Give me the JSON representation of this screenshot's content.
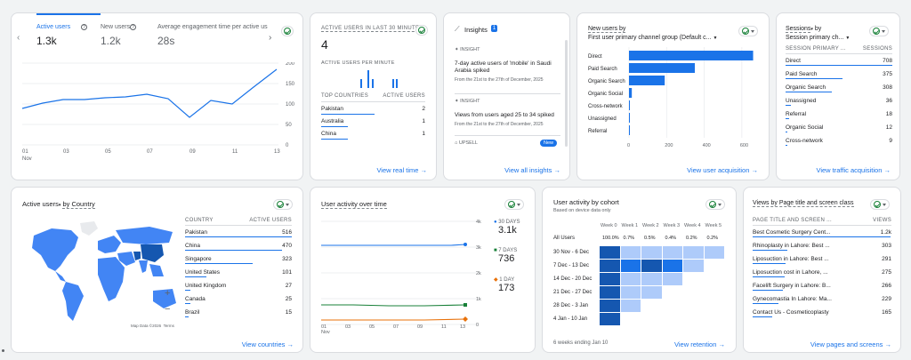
{
  "overview": {
    "tabs": [
      {
        "label": "Active users",
        "value": "1.3k"
      },
      {
        "label": "New users",
        "value": "1.2k"
      },
      {
        "label": "Average engagement time per active us",
        "value": "28s"
      }
    ],
    "x_ticks": [
      "01",
      "03",
      "05",
      "07",
      "09",
      "11",
      "13"
    ],
    "x_month": "Nov",
    "y_ticks": [
      "200",
      "150",
      "100",
      "50",
      "0"
    ]
  },
  "realtime": {
    "title": "ACTIVE USERS IN LAST 30 MINUTES",
    "value": "4",
    "per_minute_label": "ACTIVE USERS PER MINUTE",
    "col1": "TOP COUNTRIES",
    "col2": "ACTIVE USERS",
    "rows": [
      {
        "name": "Pakistan",
        "value": "2"
      },
      {
        "name": "Australia",
        "value": "1"
      },
      {
        "name": "China",
        "value": "1"
      }
    ],
    "link": "View real time"
  },
  "insights": {
    "title": "Insights",
    "badge": "1",
    "items": [
      {
        "tag": "INSIGHT",
        "text": "7-day active users of 'mobile' in Saudi Arabia spiked",
        "date": "From the 21st to the 27th of December, 2025"
      },
      {
        "tag": "INSIGHT",
        "text": "Views from users aged 25 to 34 spiked",
        "date": "From the 21st to the 27th of December, 2025"
      }
    ],
    "upsell": "UPSELL",
    "new_badge": "New",
    "link": "View all insights"
  },
  "new_users": {
    "title1": "New users by",
    "title2": "First user primary channel group (Default c...",
    "link": "View user acquisition",
    "x_ticks": [
      "0",
      "200",
      "400",
      "600"
    ],
    "chart_data": {
      "type": "bar",
      "categories": [
        "Direct",
        "Paid Search",
        "Organic Search",
        "Organic Social",
        "Cross-network",
        "Unassigned",
        "Referral"
      ],
      "values": [
        660,
        350,
        190,
        15,
        4,
        3,
        2
      ],
      "xlim": [
        0,
        700
      ]
    }
  },
  "sessions": {
    "title1": "Sessions",
    "title1b": "by",
    "title2": "Session primary ch...",
    "col1": "SESSION PRIMARY ...",
    "col2": "SESSIONS",
    "rows": [
      {
        "name": "Direct",
        "value": "708",
        "frac": 1.0
      },
      {
        "name": "Paid Search",
        "value": "375",
        "frac": 0.53
      },
      {
        "name": "Organic Search",
        "value": "308",
        "frac": 0.43
      },
      {
        "name": "Unassigned",
        "value": "36",
        "frac": 0.05
      },
      {
        "name": "Referral",
        "value": "18",
        "frac": 0.03
      },
      {
        "name": "Organic Social",
        "value": "12",
        "frac": 0.02
      },
      {
        "name": "Cross-network",
        "value": "9",
        "frac": 0.01
      }
    ],
    "link": "View traffic acquisition"
  },
  "country": {
    "title": "Active users",
    "title_suffix": "by Country",
    "col1": "COUNTRY",
    "col2": "ACTIVE USERS",
    "rows": [
      {
        "name": "Pakistan",
        "value": "516",
        "frac": 1.0
      },
      {
        "name": "China",
        "value": "470",
        "frac": 0.91
      },
      {
        "name": "Singapore",
        "value": "323",
        "frac": 0.63
      },
      {
        "name": "United States",
        "value": "101",
        "frac": 0.2
      },
      {
        "name": "United Kingdom",
        "value": "27",
        "frac": 0.05
      },
      {
        "name": "Canada",
        "value": "25",
        "frac": 0.05
      },
      {
        "name": "Brazil",
        "value": "15",
        "frac": 0.03
      }
    ],
    "map_credit": "Map Data ©2026",
    "terms": "Terms",
    "zoom_in": "+",
    "zoom_out": "−",
    "link": "View countries"
  },
  "activity": {
    "title": "User activity over time",
    "y_ticks": [
      "4k",
      "3k",
      "2k",
      "1k",
      "0"
    ],
    "x_ticks": [
      "01",
      "03",
      "05",
      "07",
      "09",
      "11",
      "13"
    ],
    "x_month": "Nov",
    "legend": [
      {
        "label": "30 DAYS",
        "value": "3.1k",
        "color": "#1a73e8"
      },
      {
        "label": "7 DAYS",
        "value": "736",
        "color": "#188038"
      },
      {
        "label": "1 DAY",
        "value": "173",
        "color": "#e8710a"
      }
    ]
  },
  "cohort": {
    "title": "User activity by cohort",
    "subtitle": "Based on device data only",
    "weeks": [
      "Week 0",
      "Week 1",
      "Week 2",
      "Week 3",
      "Week 4",
      "Week 5"
    ],
    "all_label": "All Users",
    "all_values": [
      "100.0%",
      "0.7%",
      "0.5%",
      "0.4%",
      "0.2%",
      "0.2%"
    ],
    "rows": [
      "30 Nov - 6 Dec",
      "7 Dec - 13 Dec",
      "14 Dec - 20 Dec",
      "21 Dec - 27 Dec",
      "28 Dec - 3 Jan",
      "4 Jan - 10 Jan"
    ],
    "footer": "6 weeks ending Jan 10",
    "link": "View retention"
  },
  "pages": {
    "title": "Views by Page title and screen class",
    "col1": "PAGE TITLE AND SCREEN ...",
    "col2": "VIEWS",
    "rows": [
      {
        "name": "Best Cosmetic Surgery Cent...",
        "value": "1.2k",
        "frac": 1.0
      },
      {
        "name": "Rhinoplasty in Lahore: Best ...",
        "value": "303",
        "frac": 0.25
      },
      {
        "name": "Liposuction in Lahore: Best ...",
        "value": "291",
        "frac": 0.24
      },
      {
        "name": "Liposuction cost in Lahore, ...",
        "value": "275",
        "frac": 0.23
      },
      {
        "name": "Facelift Surgery in Lahore: B...",
        "value": "266",
        "frac": 0.22
      },
      {
        "name": "Gynecomastia In Lahore: Ma...",
        "value": "229",
        "frac": 0.19
      },
      {
        "name": "Contact Us - Cosmeticoplasty",
        "value": "165",
        "frac": 0.14
      }
    ],
    "link": "View pages and screens"
  },
  "colors": {
    "accent": "#1a73e8",
    "green": "#188038",
    "orange": "#e8710a",
    "cohort_dark": "#1557b0",
    "cohort_light": "#aecbfa"
  }
}
